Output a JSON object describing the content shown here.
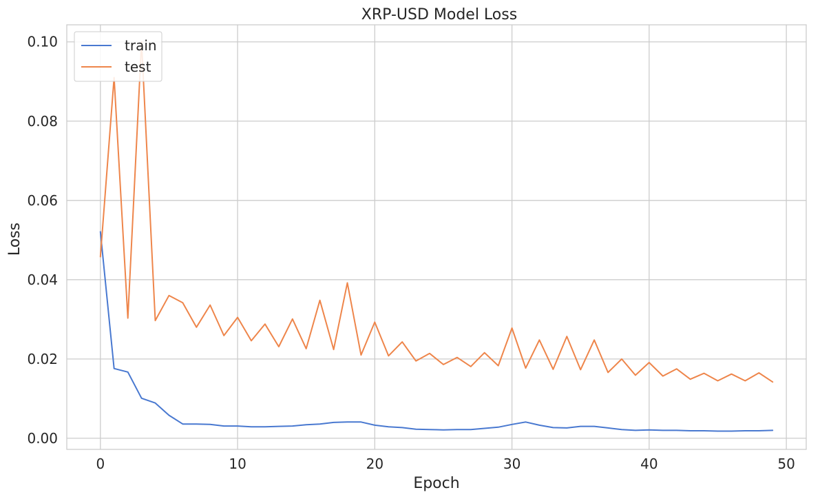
{
  "chart_data": {
    "type": "line",
    "title": "XRP-USD Model Loss",
    "xlabel": "Epoch",
    "ylabel": "Loss",
    "xlim": [
      -2.45,
      51.45
    ],
    "ylim": [
      -0.0028,
      0.1043
    ],
    "x_ticks": [
      0,
      10,
      20,
      30,
      40,
      50
    ],
    "y_ticks": [
      0.0,
      0.02,
      0.04,
      0.06,
      0.08,
      0.1
    ],
    "x_tick_labels": [
      "0",
      "10",
      "20",
      "30",
      "40",
      "50"
    ],
    "y_tick_labels": [
      "0.00",
      "0.02",
      "0.04",
      "0.06",
      "0.08",
      "0.10"
    ],
    "grid": true,
    "legend_position": "upper-left",
    "x": [
      0,
      1,
      2,
      3,
      4,
      5,
      6,
      7,
      8,
      9,
      10,
      11,
      12,
      13,
      14,
      15,
      16,
      17,
      18,
      19,
      20,
      21,
      22,
      23,
      24,
      25,
      26,
      27,
      28,
      29,
      30,
      31,
      32,
      33,
      34,
      35,
      36,
      37,
      38,
      39,
      40,
      41,
      42,
      43,
      44,
      45,
      46,
      47,
      48,
      49
    ],
    "series": [
      {
        "name": "train",
        "color": "#4878d0",
        "values": [
          0.0521,
          0.0176,
          0.0167,
          0.0101,
          0.0089,
          0.0058,
          0.0036,
          0.0036,
          0.0035,
          0.0031,
          0.0031,
          0.0029,
          0.0029,
          0.003,
          0.0031,
          0.0034,
          0.0036,
          0.004,
          0.0041,
          0.0041,
          0.0033,
          0.0029,
          0.0027,
          0.0023,
          0.0022,
          0.0021,
          0.0022,
          0.0022,
          0.0025,
          0.0028,
          0.0035,
          0.0041,
          0.0033,
          0.0027,
          0.0026,
          0.003,
          0.003,
          0.0026,
          0.0022,
          0.002,
          0.0021,
          0.002,
          0.002,
          0.0019,
          0.0019,
          0.0018,
          0.0018,
          0.0019,
          0.0019,
          0.002
        ]
      },
      {
        "name": "test",
        "color": "#ee854a",
        "values": [
          0.0458,
          0.091,
          0.0303,
          0.1,
          0.0297,
          0.036,
          0.0342,
          0.028,
          0.0336,
          0.0259,
          0.0305,
          0.0246,
          0.0288,
          0.0231,
          0.0301,
          0.0226,
          0.0348,
          0.0224,
          0.0392,
          0.021,
          0.0293,
          0.0208,
          0.0243,
          0.0195,
          0.0214,
          0.0186,
          0.0204,
          0.0181,
          0.0216,
          0.0183,
          0.0278,
          0.0177,
          0.0248,
          0.0174,
          0.0257,
          0.0173,
          0.0248,
          0.0166,
          0.02,
          0.0159,
          0.0191,
          0.0157,
          0.0175,
          0.0149,
          0.0164,
          0.0145,
          0.0162,
          0.0145,
          0.0165,
          0.0142
        ]
      }
    ]
  }
}
